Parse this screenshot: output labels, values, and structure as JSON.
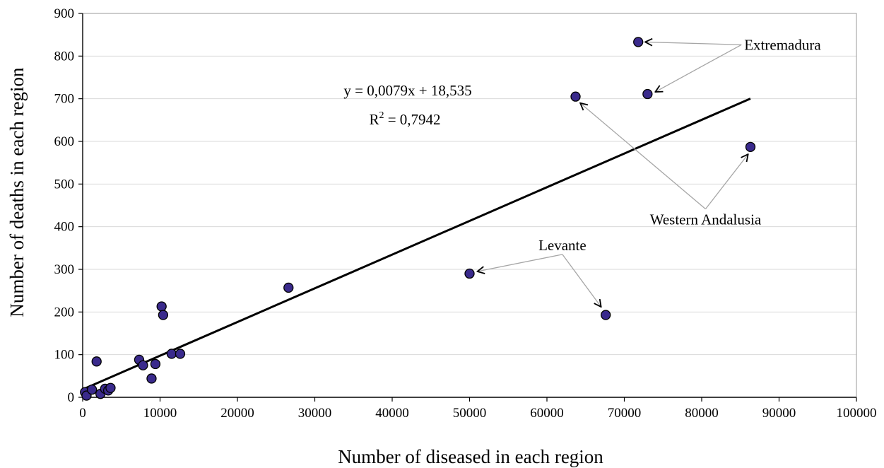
{
  "chart_data": {
    "type": "scatter",
    "title": "",
    "xlabel": "Number of diseased in each region",
    "ylabel": "Number of deaths in each region",
    "xlim": [
      0,
      100000
    ],
    "ylim": [
      0,
      900
    ],
    "x_ticks": [
      0,
      10000,
      20000,
      30000,
      40000,
      50000,
      60000,
      70000,
      80000,
      90000,
      100000
    ],
    "y_ticks": [
      0,
      100,
      200,
      300,
      400,
      500,
      600,
      700,
      800,
      900
    ],
    "grid": "horizontal",
    "legend": "none",
    "marker_color": "#3a2a8c",
    "points": [
      {
        "x": 300,
        "y": 12
      },
      {
        "x": 500,
        "y": 4
      },
      {
        "x": 1200,
        "y": 18
      },
      {
        "x": 1800,
        "y": 84
      },
      {
        "x": 2300,
        "y": 8
      },
      {
        "x": 2900,
        "y": 20
      },
      {
        "x": 3300,
        "y": 16
      },
      {
        "x": 3600,
        "y": 22
      },
      {
        "x": 7300,
        "y": 88
      },
      {
        "x": 7800,
        "y": 75
      },
      {
        "x": 8900,
        "y": 44
      },
      {
        "x": 9400,
        "y": 78
      },
      {
        "x": 10200,
        "y": 213
      },
      {
        "x": 10400,
        "y": 193
      },
      {
        "x": 11500,
        "y": 102
      },
      {
        "x": 12600,
        "y": 102
      },
      {
        "x": 26600,
        "y": 257
      },
      {
        "x": 50000,
        "y": 290
      },
      {
        "x": 63700,
        "y": 705
      },
      {
        "x": 67600,
        "y": 193
      },
      {
        "x": 71800,
        "y": 833
      },
      {
        "x": 73000,
        "y": 711
      },
      {
        "x": 86300,
        "y": 587
      }
    ],
    "trendline": {
      "slope": 0.0079,
      "intercept": 18.535,
      "x_start": 0,
      "x_end": 86300
    },
    "equation_text": "y = 0,0079x + 18,535",
    "r2_prefix": "R",
    "r2_sup": "2",
    "r2_suffix": " = 0,7942",
    "annotations": [
      {
        "text": "Extremadura",
        "label_at": {
          "x": 85500,
          "y": 815
        },
        "targets": [
          [
            72700,
            833
          ],
          [
            74000,
            716
          ]
        ],
        "anchor": "start"
      },
      {
        "text": "Western Andalusia",
        "label_at": {
          "x": 80500,
          "y": 405
        },
        "targets": [
          [
            64300,
            690
          ],
          [
            86000,
            570
          ]
        ],
        "anchor": "middle"
      },
      {
        "text": "Levante",
        "label_at": {
          "x": 62000,
          "y": 345
        },
        "targets": [
          [
            51000,
            295
          ],
          [
            67000,
            212
          ]
        ],
        "anchor": "middle"
      }
    ]
  }
}
